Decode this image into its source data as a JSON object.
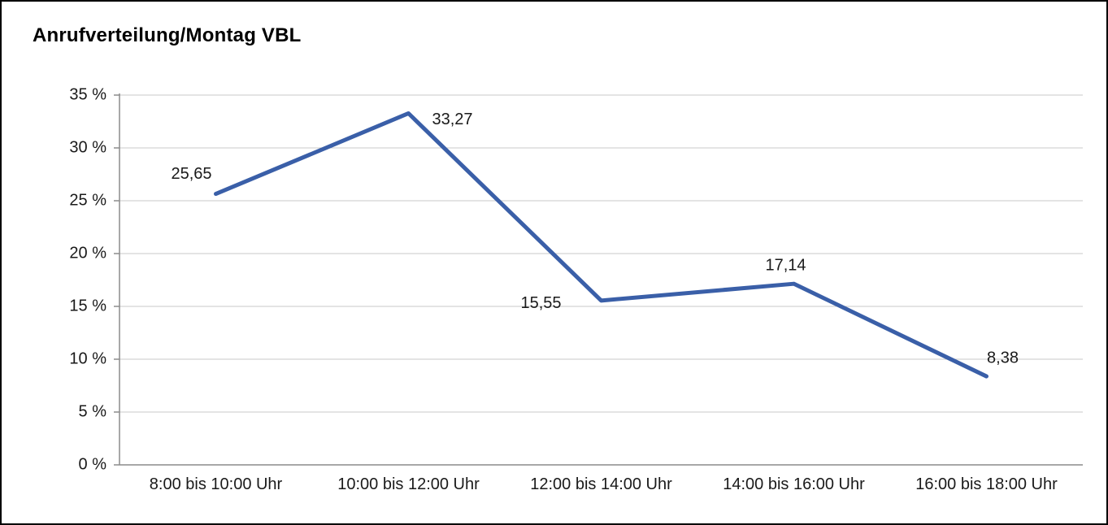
{
  "chart_data": {
    "type": "line",
    "title": "Anrufverteilung/Montag VBL",
    "categories": [
      "8:00 bis 10:00 Uhr",
      "10:00 bis 12:00 Uhr",
      "12:00 bis 14:00 Uhr",
      "14:00 bis 16:00 Uhr",
      "16:00 bis 18:00 Uhr"
    ],
    "values": [
      25.65,
      33.27,
      15.55,
      17.14,
      8.38
    ],
    "value_labels": [
      "25,65",
      "33,27",
      "15,55",
      "17,14",
      "8,38"
    ],
    "title_note": "",
    "xlabel": "",
    "ylabel": "",
    "ylim": [
      0,
      35
    ],
    "ytick_step": 5,
    "ytick_labels": [
      "0 %",
      "5 %",
      "10 %",
      "15 %",
      "20 %",
      "25 %",
      "30 %",
      "35 %"
    ],
    "grid": true,
    "legend": false,
    "colors": {
      "line": "#3a5fa8",
      "grid": "#c9c9c9",
      "axis": "#8c8c8c",
      "text": "#1a1a1a",
      "border": "#000000"
    }
  }
}
